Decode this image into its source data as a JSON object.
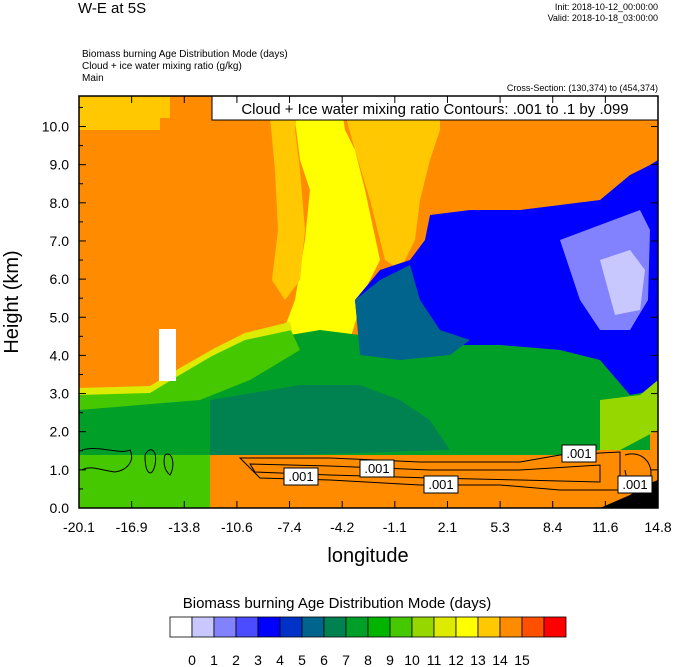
{
  "header": {
    "title": "W-E at 5S",
    "init": "Init: 2018-10-12_00:00:00",
    "valid": "Valid: 2018-10-18_03:00:00",
    "desc_line1": "Biomass burning Age Distribution Mode   (days)",
    "desc_line2": "Cloud + ice water mixing ratio   (g/kg)",
    "desc_line3": "Main",
    "cross_section": "Cross-Section: (130,374) to (454,374)"
  },
  "colors": {
    "background_orange": "#ff8c00",
    "high_orange": "#ffc800",
    "palette": [
      "#ffffff",
      "#c8c8ff",
      "#8282ff",
      "#4b4bff",
      "#0000ff",
      "#0032c8",
      "#00648c",
      "#008250",
      "#00a028",
      "#00b400",
      "#46c800",
      "#96d700",
      "#dceb00",
      "#ffff00",
      "#ffc800",
      "#ff8c00",
      "#ff5000",
      "#ff0000"
    ]
  },
  "chart_data": {
    "type": "heatmap",
    "contour_label": "Cloud + Ice water mixing ratio Contours: .001 to .1 by .099",
    "contour_values": [
      ".001",
      ".001",
      ".001",
      ".001",
      ".001"
    ],
    "xlabel": "longitude",
    "ylabel": "Height (km)",
    "x_ticks": [
      "-20.1",
      "-16.9",
      "-13.8",
      "-10.6",
      "-7.4",
      "-4.2",
      "-1.1",
      "2.1",
      "5.3",
      "8.4",
      "11.6",
      "14.8"
    ],
    "y_ticks": [
      "0.0",
      "1.0",
      "2.0",
      "3.0",
      "4.0",
      "5.0",
      "6.0",
      "7.0",
      "8.0",
      "9.0",
      "10.0"
    ],
    "xlim": [
      -20.1,
      14.8
    ],
    "ylim": [
      0,
      10.8
    ],
    "colorbar": {
      "title": "Biomass burning Age Distribution Mode  (days)",
      "labels": [
        "0",
        "1",
        "2",
        "3",
        "4",
        "5",
        "6",
        "7",
        "8",
        "9",
        "10",
        "11",
        "12",
        "13",
        "14",
        "15"
      ]
    }
  }
}
